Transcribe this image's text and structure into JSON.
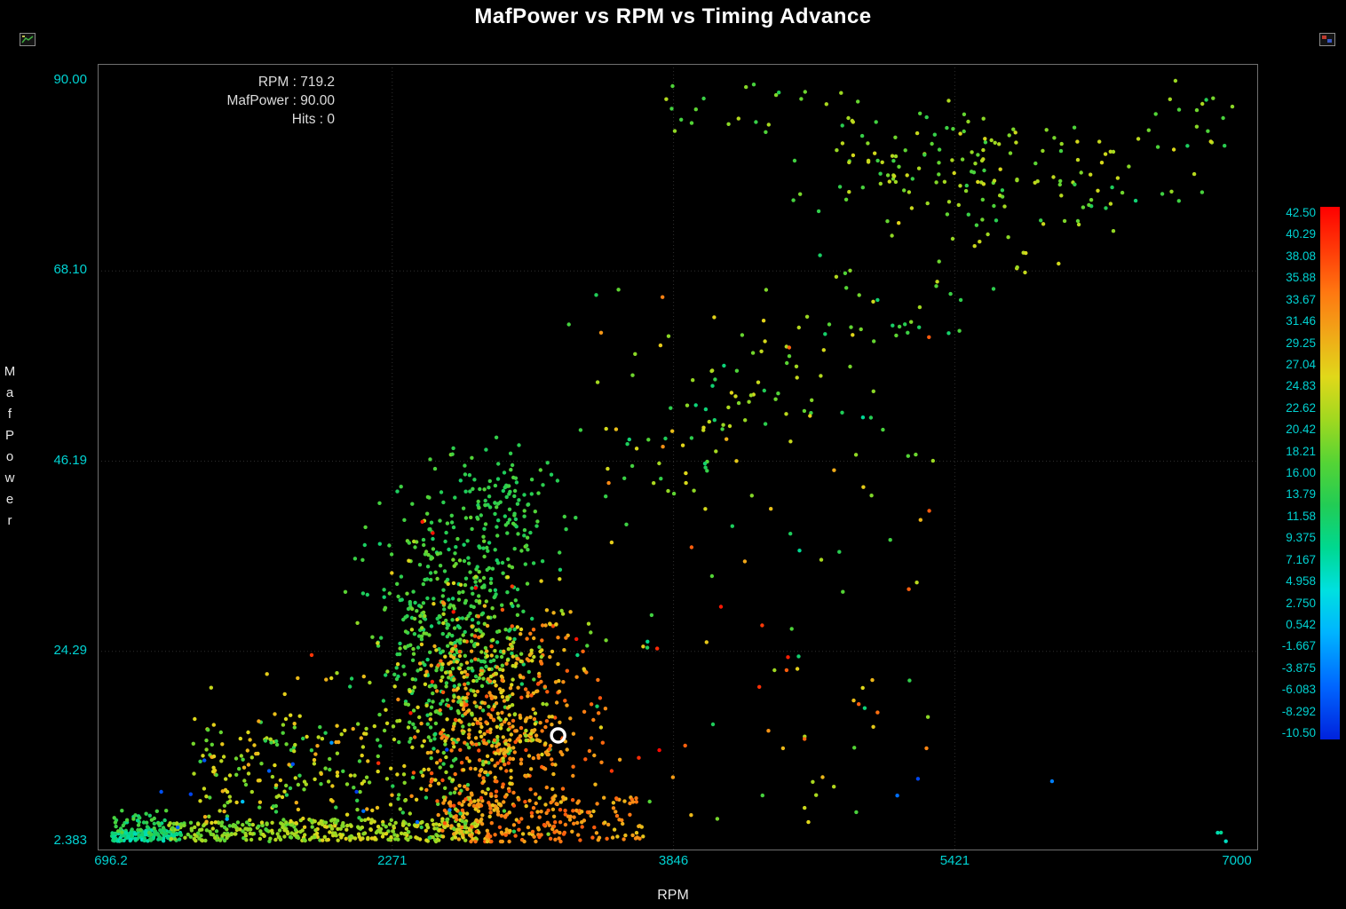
{
  "window": {
    "title": "MafPower vs RPM vs Timing Advance"
  },
  "icons": {
    "left": "mini-chart-window-icon",
    "right": "mini-chart-window-icon"
  },
  "info_box": {
    "lines": [
      "RPM : 719.2",
      "MafPower : 90.00",
      "Hits : 0"
    ]
  },
  "axes": {
    "x": {
      "label": "RPM",
      "ticks": [
        "696.2",
        "2271",
        "3846",
        "5421",
        "7000"
      ]
    },
    "y": {
      "label": "MafPower",
      "ticks": [
        "90.00",
        "68.10",
        "46.19",
        "24.29",
        "2.383"
      ]
    }
  },
  "colors": {
    "background": "#000000",
    "tick_label": "#00d2d2",
    "title_text": "#ffffff",
    "axis_label": "#e6e6e6",
    "grid_line": "#2e2e2e",
    "plot_border": "#6f6f6f",
    "cursor_ring": "#ffffff",
    "info_text": "#dcdcdc"
  },
  "chart_data": {
    "type": "scatter",
    "title": "MafPower vs RPM vs Timing Advance",
    "xlabel": "RPM",
    "ylabel": "MafPower",
    "zlabel": "Timing Advance (point color)",
    "xlim": [
      696.2,
      7000
    ],
    "ylim": [
      2.383,
      90.0
    ],
    "zlim": [
      -10.5,
      42.5
    ],
    "x_ticks": [
      696.2,
      2271,
      3846,
      5421,
      7000
    ],
    "y_ticks": [
      90.0,
      68.1,
      46.19,
      24.29,
      2.383
    ],
    "colorbar_ticks": [
      "42.50",
      "40.29",
      "38.08",
      "35.88",
      "33.67",
      "31.46",
      "29.25",
      "27.04",
      "24.83",
      "22.62",
      "20.42",
      "18.21",
      "16.00",
      "13.79",
      "11.58",
      "9.375",
      "7.167",
      "4.958",
      "2.750",
      "0.542",
      "-1.667",
      "-3.875",
      "-6.083",
      "-8.292",
      "-10.50"
    ],
    "grid": true,
    "legend_position": "right-colorbar",
    "cursor_marker": {
      "x": 3200,
      "y": 14.6
    },
    "colormap_stops": [
      [
        0.0,
        "#0022dd"
      ],
      [
        0.1,
        "#0066ff"
      ],
      [
        0.2,
        "#00b4ff"
      ],
      [
        0.28,
        "#00e0e0"
      ],
      [
        0.36,
        "#00d890"
      ],
      [
        0.44,
        "#22cc55"
      ],
      [
        0.52,
        "#55d435"
      ],
      [
        0.6,
        "#a0d820"
      ],
      [
        0.68,
        "#e0d81a"
      ],
      [
        0.76,
        "#f0a818"
      ],
      [
        0.84,
        "#ff7711"
      ],
      [
        0.92,
        "#ff3a08"
      ],
      [
        1.0,
        "#ff0000"
      ]
    ],
    "seed": 42,
    "point_clusters": [
      {
        "type": "uniform",
        "n": 140,
        "x": [
          700,
          1090
        ],
        "y": [
          2.4,
          3.7
        ],
        "v": [
          6,
          13
        ]
      },
      {
        "type": "uniform",
        "n": 45,
        "x": [
          710,
          1010
        ],
        "y": [
          3.2,
          6.0
        ],
        "v": [
          9,
          17
        ]
      },
      {
        "type": "uniform",
        "n": 150,
        "x": [
          1020,
          1750
        ],
        "y": [
          2.4,
          4.6
        ],
        "v": [
          16,
          24
        ]
      },
      {
        "type": "uniform",
        "n": 230,
        "x": [
          1700,
          2750
        ],
        "y": [
          2.4,
          5.0
        ],
        "v": [
          18,
          27
        ]
      },
      {
        "type": "uniform",
        "n": 200,
        "x": [
          2550,
          3680
        ],
        "y": [
          2.5,
          7.5
        ],
        "v": [
          27,
          36
        ]
      },
      {
        "type": "uniform",
        "n": 240,
        "x": [
          1150,
          2700
        ],
        "y": [
          4,
          16.5
        ],
        "v": [
          13,
          30
        ]
      },
      {
        "type": "gauss",
        "n": 470,
        "mx": 2620,
        "sx": 220,
        "my": 27,
        "sy": 7.5,
        "v": [
          11,
          19
        ]
      },
      {
        "type": "gauss",
        "n": 120,
        "mx": 2860,
        "sx": 170,
        "my": 41,
        "sy": 3.2,
        "v": [
          12,
          17
        ]
      },
      {
        "type": "gauss",
        "n": 470,
        "mx": 2890,
        "sx": 230,
        "my": 15,
        "sy": 6.5,
        "v": [
          27,
          37
        ]
      },
      {
        "type": "gauss",
        "n": 150,
        "mx": 2760,
        "sx": 240,
        "my": 20,
        "sy": 7.0,
        "v": [
          20,
          27
        ]
      },
      {
        "type": "band",
        "n": 170,
        "x": [
          3420,
          6980
        ],
        "x0": 3420,
        "y0": 44,
        "slope": 0.012,
        "noise": 5,
        "v": [
          10,
          26
        ]
      },
      {
        "type": "gauss",
        "n": 125,
        "mx": 5430,
        "sx": 420,
        "my": 80,
        "sy": 3.2,
        "v": [
          14,
          25
        ]
      },
      {
        "type": "uniform",
        "n": 22,
        "x": [
          3800,
          4950
        ],
        "y": [
          84,
          89.6
        ],
        "v": [
          13,
          23
        ]
      },
      {
        "type": "uniform",
        "n": 90,
        "x": [
          3200,
          5300
        ],
        "y": [
          13,
          66
        ],
        "v": [
          8,
          36
        ]
      },
      {
        "type": "uniform",
        "n": 14,
        "x": [
          820,
          2600
        ],
        "y": [
          3,
          14
        ],
        "v": [
          -10,
          2
        ]
      },
      {
        "type": "uniform",
        "n": 3,
        "x": [
          4400,
          6000
        ],
        "y": [
          3,
          10
        ],
        "v": [
          -8,
          -2
        ]
      },
      {
        "type": "uniform",
        "n": 18,
        "x": [
          1500,
          4600
        ],
        "y": [
          5,
          40
        ],
        "v": [
          38,
          42.5
        ]
      },
      {
        "type": "uniform",
        "n": 12,
        "x": [
          3700,
          4900
        ],
        "y": [
          3,
          11
        ],
        "v": [
          15,
          34
        ]
      },
      {
        "type": "uniform",
        "n": 3,
        "x": [
          6750,
          6990
        ],
        "y": [
          2.4,
          3.6
        ],
        "v": [
          5,
          9
        ]
      },
      {
        "type": "uniform",
        "n": 25,
        "x": [
          1150,
          2200
        ],
        "y": [
          7,
          22
        ],
        "v": [
          20,
          30
        ]
      }
    ]
  }
}
